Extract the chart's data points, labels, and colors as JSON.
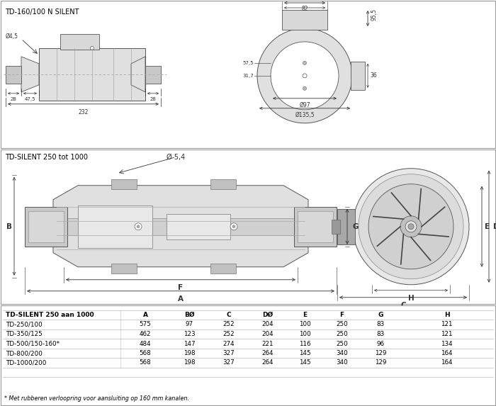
{
  "title_top": "TD-160/100 N SILENT",
  "title_mid": "TD-SILENT 250 tot 1000",
  "diam_54": "Ø 5,4",
  "table_header": [
    "TD-SILENT 250 aan 1000",
    "A",
    "BØ",
    "C",
    "DØ",
    "E",
    "F",
    "G",
    "H"
  ],
  "table_rows": [
    [
      "TD-250/100",
      "575",
      "97",
      "252",
      "204",
      "100",
      "250",
      "83",
      "121"
    ],
    [
      "TD-350/125",
      "462",
      "123",
      "252",
      "204",
      "100",
      "250",
      "83",
      "121"
    ],
    [
      "TD-500/150-160*",
      "484",
      "147",
      "274",
      "221",
      "116",
      "250",
      "96",
      "134"
    ],
    [
      "TD-800/200",
      "568",
      "198",
      "327",
      "264",
      "145",
      "340",
      "129",
      "164"
    ],
    [
      "TD-1000/200",
      "568",
      "198",
      "327",
      "264",
      "145",
      "340",
      "129",
      "164"
    ]
  ],
  "footnote": "* Met rubberen verloopring voor aansluiting op 160 mm kanalen.",
  "bg_color": "#ffffff",
  "border_color": "#888888",
  "lc": "#555555",
  "dc": "#333333",
  "tc": "#000000",
  "gray1": "#c8c8c8",
  "gray2": "#e0e0e0",
  "gray3": "#a8a8a8",
  "gray4": "#d8d8d8",
  "gray5": "#b0b0b0"
}
